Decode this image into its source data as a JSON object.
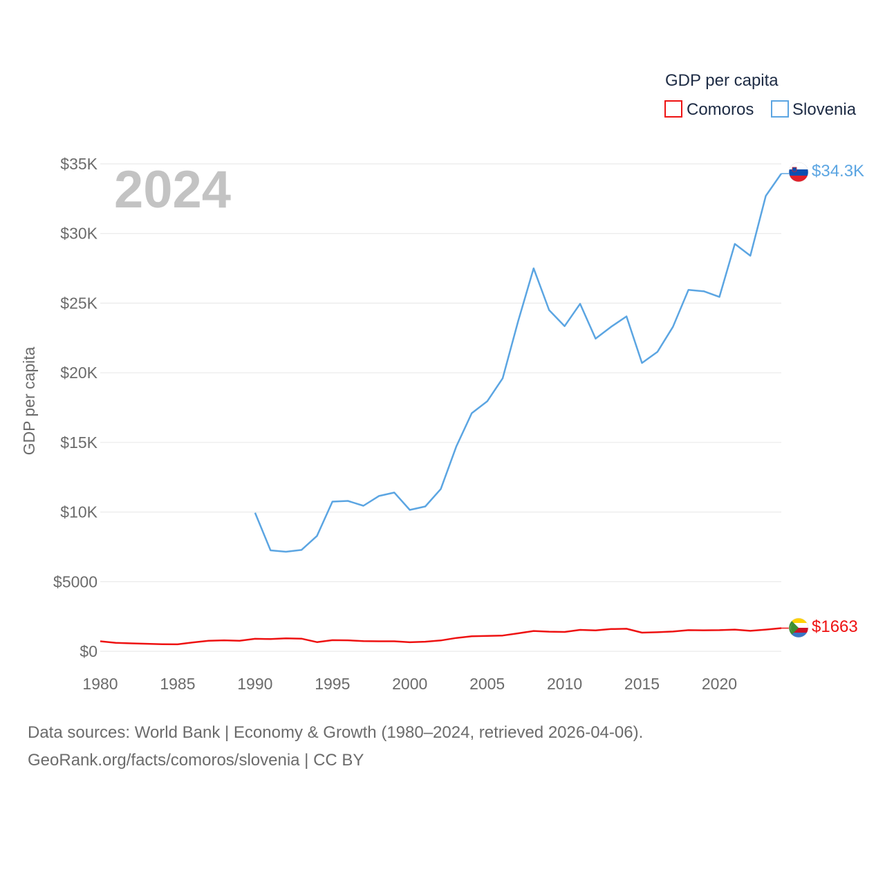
{
  "chart_data": {
    "type": "line",
    "year_label": "2024",
    "ylabel": "GDP per capita",
    "legend_title": "GDP per capita",
    "legend_position": "top-right",
    "ylim": [
      0,
      35000
    ],
    "xlim": [
      1980,
      2024
    ],
    "y_ticks": [
      {
        "value": 0,
        "label": "$0"
      },
      {
        "value": 5000,
        "label": "$5000"
      },
      {
        "value": 10000,
        "label": "$10K"
      },
      {
        "value": 15000,
        "label": "$15K"
      },
      {
        "value": 20000,
        "label": "$20K"
      },
      {
        "value": 25000,
        "label": "$25K"
      },
      {
        "value": 30000,
        "label": "$30K"
      },
      {
        "value": 35000,
        "label": "$35K"
      }
    ],
    "x_ticks": [
      {
        "value": 1980,
        "label": "1980"
      },
      {
        "value": 1985,
        "label": "1985"
      },
      {
        "value": 1990,
        "label": "1990"
      },
      {
        "value": 1995,
        "label": "1995"
      },
      {
        "value": 2000,
        "label": "2000"
      },
      {
        "value": 2005,
        "label": "2005"
      },
      {
        "value": 2010,
        "label": "2010"
      },
      {
        "value": 2015,
        "label": "2015"
      },
      {
        "value": 2020,
        "label": "2020"
      }
    ],
    "series": [
      {
        "name": "Comoros",
        "key": "comoros",
        "color": "#ee1111",
        "end_label": "$1663",
        "flag": "comoros-flag-icon",
        "points": [
          [
            1980,
            720
          ],
          [
            1981,
            610
          ],
          [
            1982,
            570
          ],
          [
            1983,
            540
          ],
          [
            1984,
            510
          ],
          [
            1985,
            500
          ],
          [
            1986,
            640
          ],
          [
            1987,
            760
          ],
          [
            1988,
            790
          ],
          [
            1989,
            760
          ],
          [
            1990,
            900
          ],
          [
            1991,
            880
          ],
          [
            1992,
            930
          ],
          [
            1993,
            910
          ],
          [
            1994,
            660
          ],
          [
            1995,
            800
          ],
          [
            1996,
            790
          ],
          [
            1997,
            730
          ],
          [
            1998,
            720
          ],
          [
            1999,
            720
          ],
          [
            2000,
            650
          ],
          [
            2001,
            690
          ],
          [
            2002,
            780
          ],
          [
            2003,
            960
          ],
          [
            2004,
            1080
          ],
          [
            2005,
            1100
          ],
          [
            2006,
            1130
          ],
          [
            2007,
            1290
          ],
          [
            2008,
            1460
          ],
          [
            2009,
            1410
          ],
          [
            2010,
            1390
          ],
          [
            2011,
            1540
          ],
          [
            2012,
            1500
          ],
          [
            2013,
            1600
          ],
          [
            2014,
            1620
          ],
          [
            2015,
            1340
          ],
          [
            2016,
            1370
          ],
          [
            2017,
            1420
          ],
          [
            2018,
            1520
          ],
          [
            2019,
            1510
          ],
          [
            2020,
            1520
          ],
          [
            2021,
            1560
          ],
          [
            2022,
            1470
          ],
          [
            2023,
            1560
          ],
          [
            2024,
            1663
          ]
        ]
      },
      {
        "name": "Slovenia",
        "key": "slovenia",
        "color": "#5ba5e2",
        "end_label": "$34.3K",
        "flag": "slovenia-flag-icon",
        "points": [
          [
            1990,
            9950
          ],
          [
            1991,
            7250
          ],
          [
            1992,
            7150
          ],
          [
            1993,
            7280
          ],
          [
            1994,
            8280
          ],
          [
            1995,
            10750
          ],
          [
            1996,
            10800
          ],
          [
            1997,
            10450
          ],
          [
            1998,
            11150
          ],
          [
            1999,
            11400
          ],
          [
            2000,
            10150
          ],
          [
            2001,
            10400
          ],
          [
            2002,
            11650
          ],
          [
            2003,
            14700
          ],
          [
            2004,
            17100
          ],
          [
            2005,
            17950
          ],
          [
            2006,
            19600
          ],
          [
            2007,
            23700
          ],
          [
            2008,
            27500
          ],
          [
            2009,
            24500
          ],
          [
            2010,
            23350
          ],
          [
            2011,
            24950
          ],
          [
            2012,
            22450
          ],
          [
            2013,
            23300
          ],
          [
            2014,
            24050
          ],
          [
            2015,
            20700
          ],
          [
            2016,
            21500
          ],
          [
            2017,
            23300
          ],
          [
            2018,
            25950
          ],
          [
            2019,
            25850
          ],
          [
            2020,
            25450
          ],
          [
            2021,
            29250
          ],
          [
            2022,
            28400
          ],
          [
            2023,
            32700
          ],
          [
            2024,
            34300
          ]
        ]
      }
    ]
  },
  "footer": {
    "line1": "Data sources: World Bank | Economy & Growth (1980–2024, retrieved 2026-04-06).",
    "line2": "GeoRank.org/facts/comoros/slovenia | CC BY"
  }
}
